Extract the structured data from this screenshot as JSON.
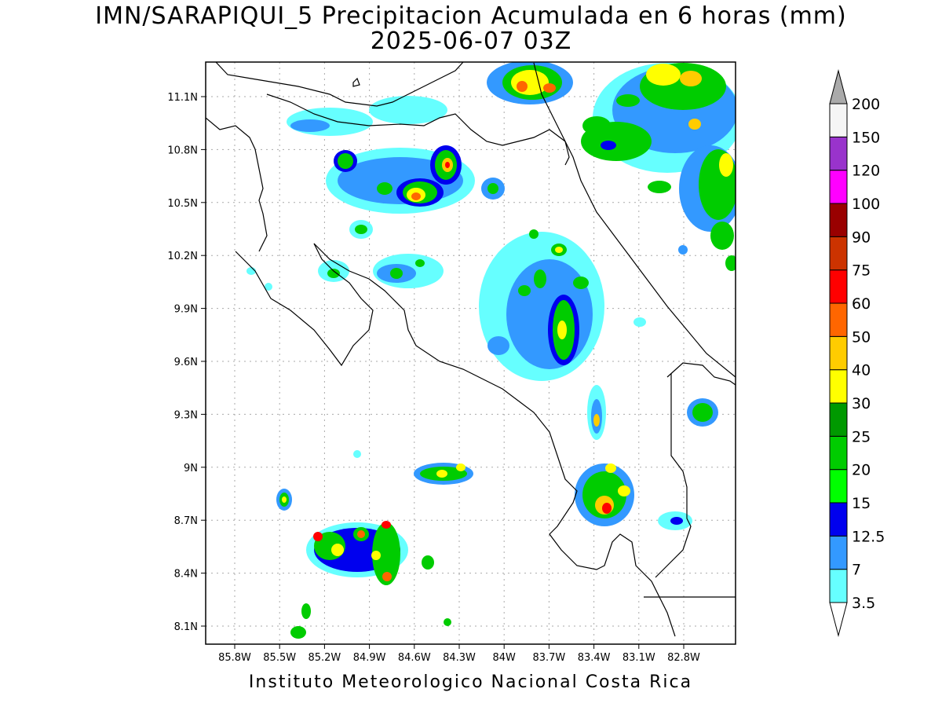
{
  "title_line1": "IMN/SARAPIQUI_5 Precipitacion Acumulada en 6 horas (mm)",
  "title_line2": "2025-06-07 03Z",
  "footer": "Instituto Meteorologico Nacional Costa Rica",
  "map": {
    "lon_range": [
      -86.0,
      -83.0
    ],
    "lat_range": [
      8.0,
      11.3
    ],
    "lon_ticks": [
      "85.8W",
      "85.5W",
      "85.2W",
      "84.9W",
      "84.6W",
      "84.3W",
      "84W",
      "83.7W",
      "83.4W",
      "83.1W",
      "82.8W"
    ],
    "lat_ticks": [
      "8.1N",
      "8.4N",
      "8.7N",
      "9N",
      "9.3N",
      "9.6N",
      "9.9N",
      "10.2N",
      "10.5N",
      "10.8N",
      "11.1N"
    ],
    "grid": true
  },
  "colorbar": {
    "labels": [
      "3.5",
      "7",
      "12.5",
      "15",
      "20",
      "25",
      "30",
      "40",
      "50",
      "60",
      "75",
      "90",
      "100",
      "120",
      "150",
      "200"
    ],
    "colors": [
      "#66ffff",
      "#3399ff",
      "#0000ee",
      "#00ff00",
      "#00cc00",
      "#009900",
      "#ffff00",
      "#ffcc00",
      "#ff6600",
      "#ff0000",
      "#cc3300",
      "#990000",
      "#ff00ff",
      "#9933cc",
      "#f5f5f5"
    ],
    "over_color": "#aaaaaa",
    "under_color": "#ffffff"
  }
}
